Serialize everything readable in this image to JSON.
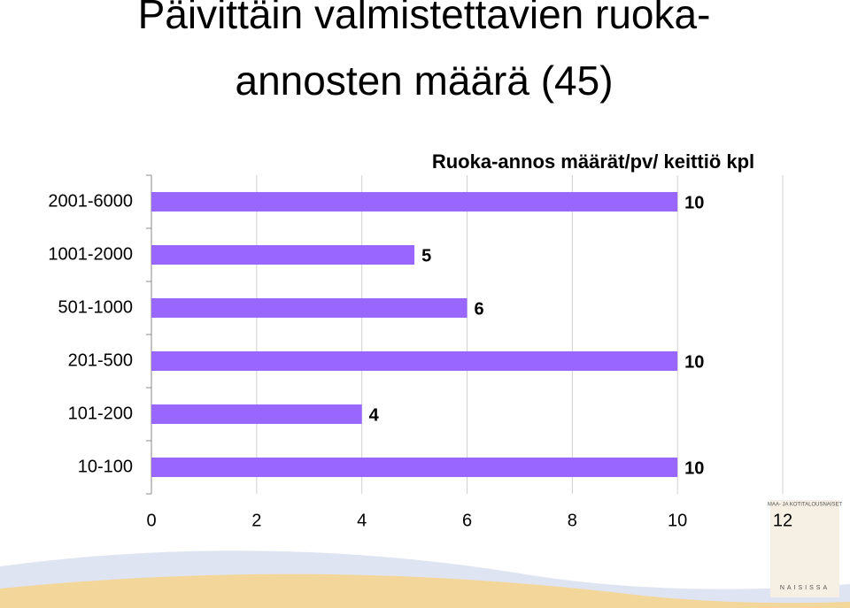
{
  "title_lines": [
    "Päivittäin valmistettavien ruoka-",
    "annosten määrä (45)"
  ],
  "chart_data": {
    "type": "hbar",
    "title": "Ruoka-annos määrät/pv/ keittiö kpl",
    "categories": [
      "2001-6000",
      "1001-2000",
      "501-1000",
      "201-500",
      "101-200",
      "10-100"
    ],
    "values": [
      10,
      5,
      6,
      10,
      4,
      10
    ],
    "color": "#9966ff",
    "xlim": [
      0,
      12
    ],
    "xticks": [
      0,
      2,
      4,
      6,
      8,
      10,
      12
    ],
    "grid": true
  },
  "logo": {
    "top": "MAA- JA KOTITALOUSNAISET",
    "bottom": "NAISISSA"
  }
}
